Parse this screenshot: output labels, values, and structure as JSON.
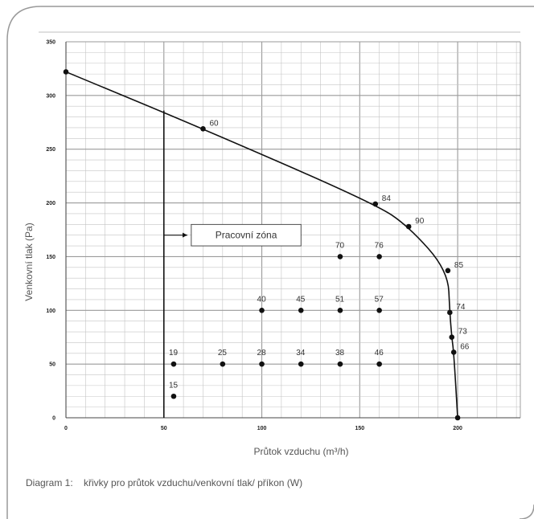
{
  "caption": "Diagram 1:    křivky pro průtok vzduchu/venkovní tlak/ příkon (W)",
  "chart_data": {
    "type": "scatter",
    "xlabel": "Průtok vzduchu  (m³/h)",
    "ylabel": "Venkovní tlak (Pa)",
    "xlim": [
      0,
      232
    ],
    "ylim": [
      0,
      350
    ],
    "xticks": [
      0,
      50,
      100,
      150,
      200
    ],
    "yticks": [
      0,
      50,
      100,
      150,
      200,
      250,
      300,
      350
    ],
    "grid": true,
    "curve": {
      "points": [
        {
          "x": 0,
          "y": 322,
          "label": ""
        },
        {
          "x": 70,
          "y": 269,
          "label": "60"
        },
        {
          "x": 158,
          "y": 199,
          "label": "84"
        },
        {
          "x": 175,
          "y": 178,
          "label": "90"
        },
        {
          "x": 195,
          "y": 137,
          "label": "85"
        },
        {
          "x": 196,
          "y": 98,
          "label": "74"
        },
        {
          "x": 197,
          "y": 75,
          "label": "73"
        },
        {
          "x": 198,
          "y": 61,
          "label": "66"
        },
        {
          "x": 200,
          "y": 0,
          "label": ""
        }
      ]
    },
    "operating_points": [
      {
        "x": 55,
        "y": 50,
        "label": "19"
      },
      {
        "x": 55,
        "y": 20,
        "label": "15"
      },
      {
        "x": 80,
        "y": 50,
        "label": "25"
      },
      {
        "x": 100,
        "y": 50,
        "label": "28"
      },
      {
        "x": 120,
        "y": 50,
        "label": "34"
      },
      {
        "x": 140,
        "y": 50,
        "label": "38"
      },
      {
        "x": 160,
        "y": 50,
        "label": "46"
      },
      {
        "x": 100,
        "y": 100,
        "label": "40"
      },
      {
        "x": 120,
        "y": 100,
        "label": "45"
      },
      {
        "x": 140,
        "y": 100,
        "label": "51"
      },
      {
        "x": 160,
        "y": 100,
        "label": "57"
      },
      {
        "x": 140,
        "y": 150,
        "label": "70"
      },
      {
        "x": 160,
        "y": 150,
        "label": "76"
      }
    ],
    "zone": {
      "label": "Pracovní zóna",
      "boundary_x": 50
    }
  }
}
